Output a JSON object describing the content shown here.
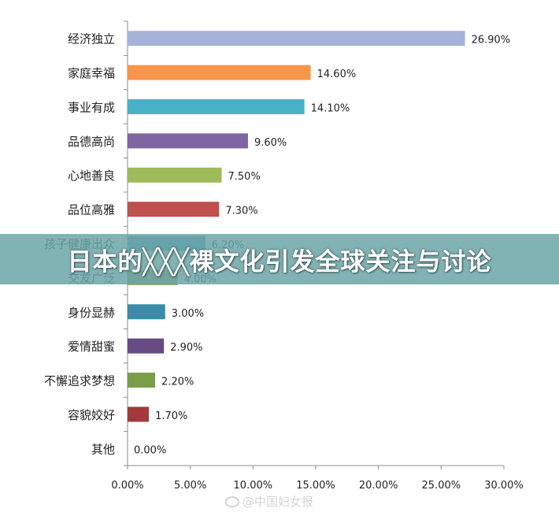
{
  "chart_data": {
    "type": "bar",
    "orientation": "horizontal",
    "categories": [
      "经济独立",
      "家庭幸福",
      "事业有成",
      "品德高尚",
      "心地善良",
      "品位高雅",
      "孩子健康出众",
      "交友广泛",
      "身份显赫",
      "爱情甜蜜",
      "不懈追求梦想",
      "容貌姣好",
      "其他"
    ],
    "values": [
      26.9,
      14.6,
      14.1,
      9.6,
      7.5,
      7.3,
      6.2,
      4.0,
      3.0,
      2.9,
      2.2,
      1.7,
      0.0
    ],
    "value_labels": [
      "26.90%",
      "14.60%",
      "14.10%",
      "9.60%",
      "7.50%",
      "7.30%",
      "6.20%",
      "4.00%",
      "3.00%",
      "2.90%",
      "2.20%",
      "1.70%",
      "0.00%"
    ],
    "colors": [
      "#a5b3d8",
      "#f7964b",
      "#46b1c9",
      "#8065a3",
      "#9dbb59",
      "#c0504d",
      "#4697b8",
      "#8c9e5e",
      "#3b8aa7",
      "#674b82",
      "#7a9e47",
      "#a23a3d",
      "#000000"
    ],
    "xlim": [
      0,
      30
    ],
    "xticks": [
      "0.00%",
      "5.00%",
      "10.00%",
      "15.00%",
      "20.00%",
      "25.00%",
      "30.00%"
    ],
    "grid": false,
    "legend": "none"
  },
  "banner": {
    "text": "日本的╳╳╳裸文化引发全球关注与讨论"
  },
  "watermark": {
    "text": "@中国妇女报",
    "icon": "weibo-icon"
  }
}
